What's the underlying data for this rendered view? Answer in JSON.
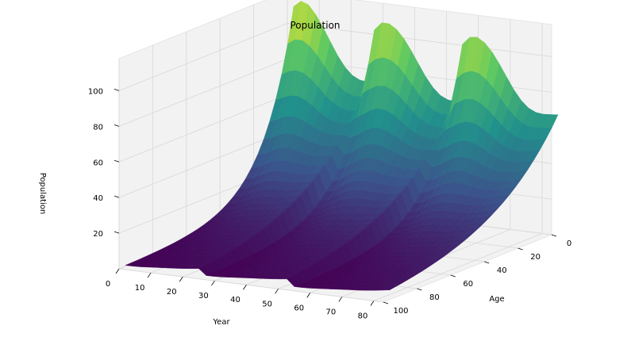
{
  "chart_data": {
    "type": "surface3d",
    "title": "Population",
    "xlabel": "Year",
    "ylabel": "Age",
    "zlabel": "Population",
    "x_ticks": [
      "0",
      "10",
      "20",
      "30",
      "40",
      "50",
      "60",
      "70",
      "80"
    ],
    "y_ticks": [
      "0",
      "20",
      "40",
      "60",
      "80",
      "100"
    ],
    "z_ticks": [
      "20",
      "40",
      "60",
      "80",
      "100"
    ],
    "xlim": [
      0,
      83
    ],
    "ylim": [
      0,
      100
    ],
    "zlim": [
      0,
      118
    ],
    "colormap": "viridis",
    "grid": true,
    "ridges_at_age_0_to_5": [
      {
        "year": 5,
        "population": 115
      },
      {
        "year": 30,
        "population": 112
      },
      {
        "year": 58,
        "population": 110
      }
    ],
    "surface_low_value": 2,
    "colors": {
      "pane": "#f2f2f2",
      "grid": "#d8d8d8",
      "viridis_low": "#440154",
      "viridis_mid": "#21918c",
      "viridis_high": "#fde725"
    }
  }
}
